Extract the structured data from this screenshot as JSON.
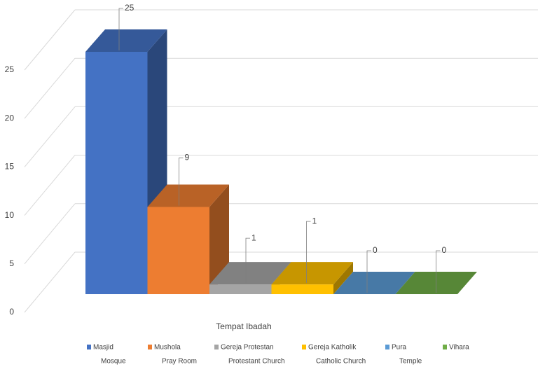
{
  "chart_data": {
    "type": "bar3d",
    "x_label": "Tempat Ibadah",
    "categories": [
      "Masjid",
      "Mushola",
      "Gereja Protestan",
      "Gereja Katholik",
      "Pura",
      "Vihara"
    ],
    "category_translations": [
      "Mosque",
      "Pray Room",
      "Protestant Church",
      "Catholic Church",
      "Temple",
      ""
    ],
    "values": [
      25,
      9,
      1,
      1,
      0,
      0
    ],
    "colors": [
      "#4472c4",
      "#ed7d31",
      "#a5a5a5",
      "#ffc000",
      "#5b9bd5",
      "#70ad47"
    ],
    "ylim": [
      0,
      25
    ],
    "yticks": [
      0,
      5,
      10,
      15,
      20,
      25
    ],
    "grid": true
  }
}
